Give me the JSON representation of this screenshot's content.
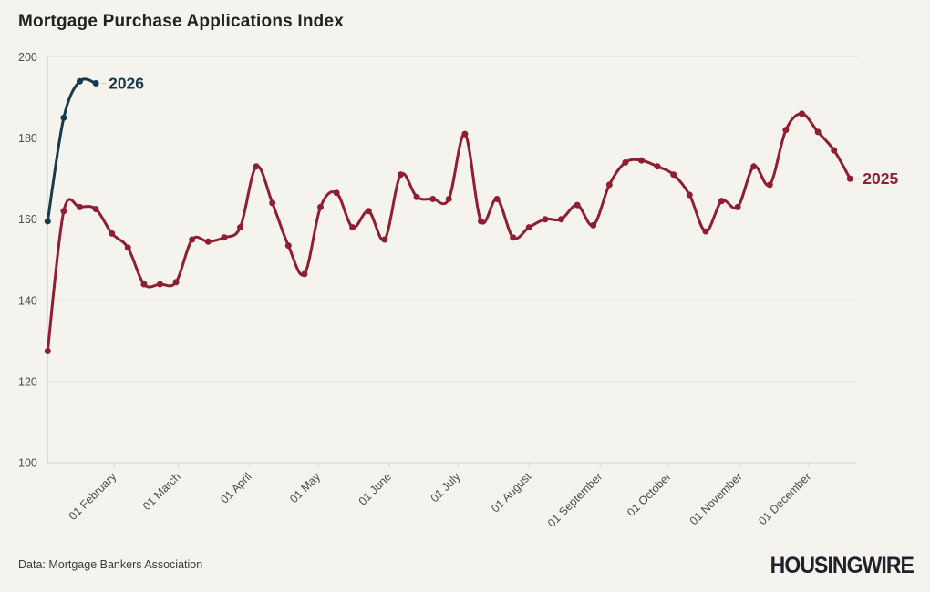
{
  "page": {
    "background": "#f5f3ee"
  },
  "header": {
    "title": "Mortgage Purchase Applications Index"
  },
  "footer": {
    "source": "Data: Mortgage Bankers Association",
    "brand": "HOUSINGWIRE"
  },
  "colors": {
    "series_2025": "#8e1e30",
    "series_2026": "#16394b",
    "grid": "#e9e6e0",
    "axis": "#d7d4cc",
    "tick_label": "#4d4b47",
    "title_text": "#222220"
  },
  "chart_data": {
    "type": "line",
    "title": "Mortgage Purchase Applications Index",
    "xlabel": "",
    "ylabel": "",
    "ylim": [
      100,
      200
    ],
    "y_ticks": [
      200,
      180,
      160,
      140,
      120,
      100
    ],
    "grid": "horizontal",
    "legend_position": "inline-end-labels",
    "x_ticks": [
      {
        "label": "01 February",
        "day": 31
      },
      {
        "label": "01 March",
        "day": 59
      },
      {
        "label": "01 April",
        "day": 90
      },
      {
        "label": "01 May",
        "day": 120
      },
      {
        "label": "01 June",
        "day": 151
      },
      {
        "label": "01 July",
        "day": 181
      },
      {
        "label": "01 August",
        "day": 212
      },
      {
        "label": "01 September",
        "day": 243
      },
      {
        "label": "01 October",
        "day": 273
      },
      {
        "label": "01 November",
        "day": 304
      },
      {
        "label": "01 December",
        "day": 334
      }
    ],
    "series": [
      {
        "name": "2025",
        "color": "#8e1e30",
        "start_day": 2,
        "interval_days": 7,
        "values": [
          127.5,
          162,
          163,
          162.5,
          156.5,
          153,
          144,
          144,
          144.5,
          155,
          154.5,
          155.5,
          158,
          173,
          164,
          153.5,
          146.5,
          163,
          166.5,
          158,
          162,
          155,
          171,
          165.5,
          165,
          165,
          181,
          159.5,
          165,
          155.5,
          158,
          160,
          160,
          163.5,
          158.5,
          168.5,
          174,
          174.5,
          173,
          171,
          166,
          157,
          164.5,
          163,
          173,
          168.5,
          182,
          186,
          181.5,
          177,
          170
        ]
      },
      {
        "name": "2026",
        "color": "#16394b",
        "start_day": 2,
        "interval_days": 7,
        "values": [
          159.5,
          185,
          194,
          193.5
        ]
      }
    ]
  }
}
